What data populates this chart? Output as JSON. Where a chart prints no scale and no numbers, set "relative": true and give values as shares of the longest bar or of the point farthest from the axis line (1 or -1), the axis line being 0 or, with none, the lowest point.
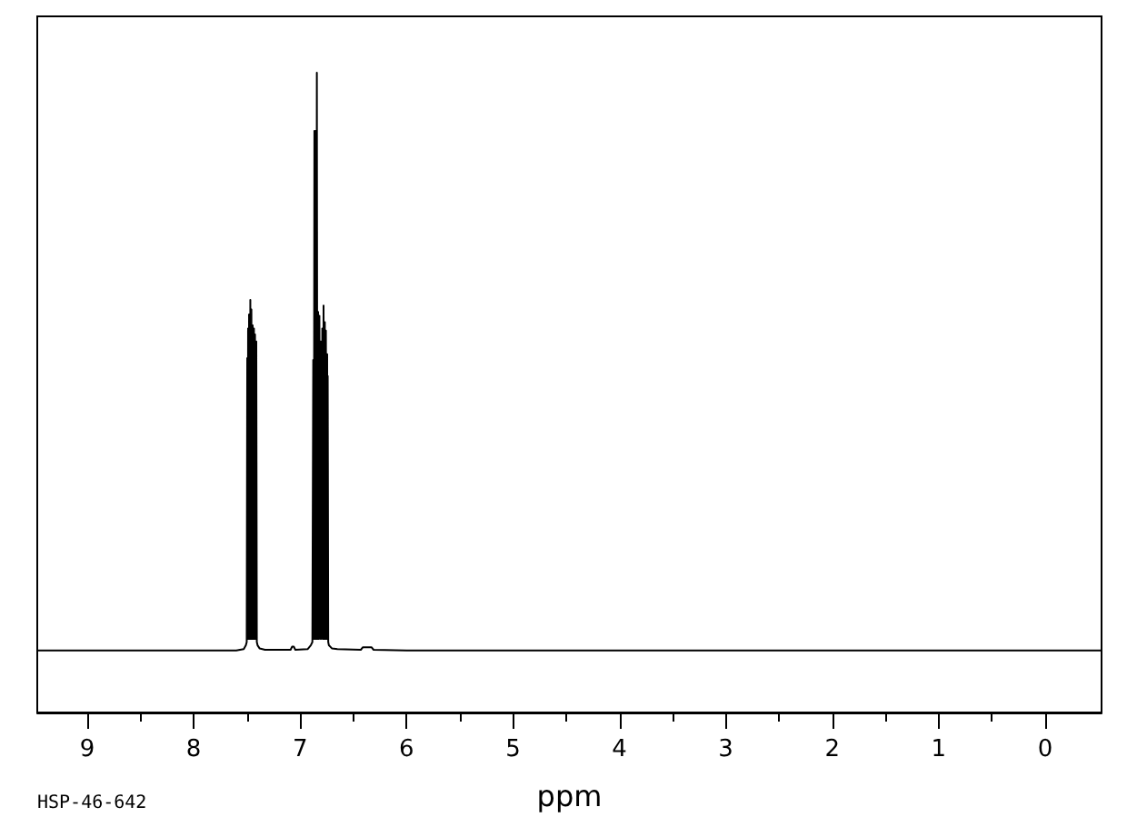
{
  "chart_data": {
    "type": "line",
    "relative": true,
    "xlabel": "ppm",
    "annotations": [
      "HSP-46-642"
    ],
    "xlim": [
      9.47,
      -0.53
    ],
    "xticks": [
      9,
      {
        "value": 8.5,
        "label": null
      },
      8,
      {
        "value": 7.5,
        "label": null
      },
      7,
      {
        "value": 6.5,
        "label": null
      },
      6,
      {
        "value": 5.5,
        "label": null
      },
      5,
      {
        "value": 4.5,
        "label": null
      },
      4,
      {
        "value": 3.5,
        "label": null
      },
      3,
      {
        "value": 2.5,
        "label": null
      },
      2,
      {
        "value": 1.5,
        "label": null
      },
      1,
      {
        "value": 0.5,
        "label": null
      },
      0
    ],
    "series": [
      {
        "color": "#000000",
        "x": [
          9.47,
          7.6,
          7.53,
          7.51,
          7.502,
          7.497,
          7.493,
          7.489,
          7.484,
          7.48,
          7.474,
          7.468,
          7.463,
          7.458,
          7.452,
          7.446,
          7.44,
          7.434,
          7.429,
          7.424,
          7.418,
          7.412,
          7.407,
          7.4,
          7.38,
          7.33,
          7.09,
          7.075,
          7.06,
          7.045,
          6.93,
          6.9,
          6.885,
          6.877,
          6.872,
          6.866,
          6.86,
          6.854,
          6.848,
          6.843,
          6.837,
          6.831,
          6.825,
          6.819,
          6.812,
          6.806,
          6.799,
          6.792,
          6.786,
          6.78,
          6.774,
          6.768,
          6.763,
          6.758,
          6.752,
          6.746,
          6.743,
          6.741,
          6.736,
          6.73,
          6.7,
          6.65,
          6.43,
          6.41,
          6.33,
          6.31,
          6.0,
          -0.53
        ],
        "values": [
          0.097,
          0.097,
          0.099,
          0.105,
          0.11,
          0.554,
          0.115,
          0.6,
          0.115,
          0.622,
          0.115,
          0.645,
          0.115,
          0.63,
          0.115,
          0.605,
          0.115,
          0.6,
          0.115,
          0.591,
          0.115,
          0.58,
          0.11,
          0.105,
          0.1,
          0.098,
          0.098,
          0.103,
          0.103,
          0.098,
          0.099,
          0.105,
          0.11,
          0.551,
          0.115,
          0.909,
          0.115,
          0.909,
          0.115,
          1.0,
          0.115,
          0.626,
          0.115,
          0.62,
          0.115,
          0.58,
          0.115,
          0.6,
          0.115,
          0.636,
          0.115,
          0.61,
          0.115,
          0.597,
          0.115,
          0.56,
          0.115,
          0.526,
          0.11,
          0.105,
          0.1,
          0.099,
          0.098,
          0.102,
          0.102,
          0.098,
          0.097,
          0.097
        ]
      }
    ]
  }
}
